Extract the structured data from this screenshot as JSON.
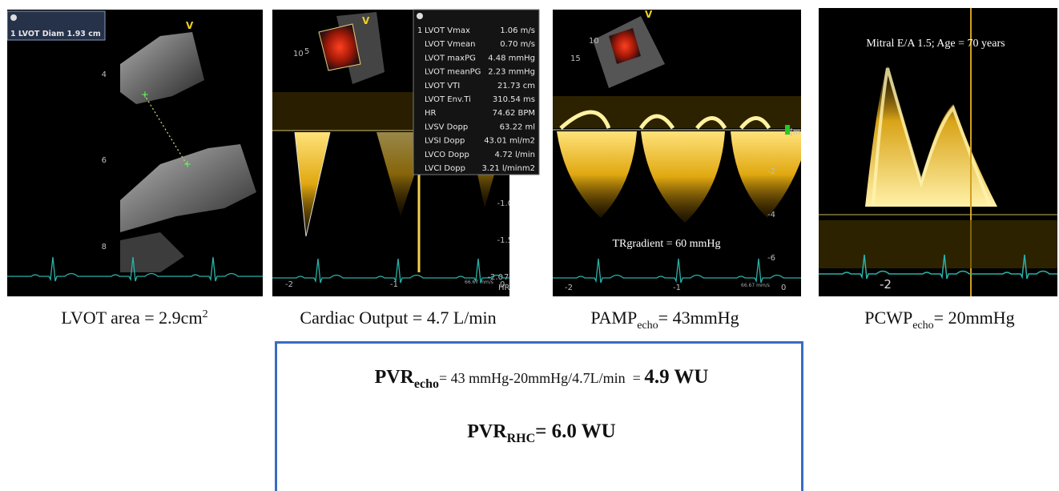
{
  "panels": [
    {
      "label": "1 LVOT Diam 1.93 cm",
      "marker": "V",
      "depth_marks": [
        "4",
        "6",
        "8"
      ],
      "caption": [
        "LVOT area = 2.9cm",
        "2"
      ]
    },
    {
      "marker": "V",
      "depth_marks": [
        "5",
        "10"
      ],
      "measurements": [
        [
          "1",
          "LVOT Vmax",
          "1.06 m/s"
        ],
        [
          "",
          "LVOT Vmean",
          "0.70 m/s"
        ],
        [
          "",
          "LVOT maxPG",
          "4.48 mmHg"
        ],
        [
          "",
          "LVOT meanPG",
          "2.23 mmHg"
        ],
        [
          "",
          "LVOT VTI",
          "21.73 cm"
        ],
        [
          "",
          "LVOT Env.Ti",
          "310.54 ms"
        ],
        [
          "",
          "HR",
          "74.62 BPM"
        ],
        [
          "",
          "LVSV Dopp",
          "63.22 ml"
        ],
        [
          "",
          "LVSI Dopp",
          "43.01 ml/m2"
        ],
        [
          "",
          "LVCO Dopp",
          "4.72 l/min"
        ],
        [
          "",
          "LVCI Dopp",
          "3.21 l/minm2"
        ]
      ],
      "scale_labels": [
        "-1.0",
        "-1.5",
        "-2.0"
      ],
      "hr": [
        "75",
        "HR"
      ],
      "time_labels": [
        "-2",
        "-1",
        "0"
      ],
      "sweep": "66.67 mm/s",
      "caption": [
        "Cardiac Output = 4.7 L/min"
      ]
    },
    {
      "marker": "V",
      "depth_marks": [
        "10",
        "15"
      ],
      "unit_mark": "[m",
      "scale_labels": [
        "-2",
        "-4",
        "-6"
      ],
      "annotation": "TRgradient = 60 mmHg",
      "time_labels": [
        "-2",
        "-1",
        "0"
      ],
      "sweep": "66.67 mm/s",
      "caption": [
        "PAMP",
        "echo",
        "= 43mmHg"
      ]
    },
    {
      "annotation": "Mitral E/A 1.5; Age = 70 years",
      "time_labels": [
        "-2"
      ],
      "caption": [
        "PCWP",
        "echo",
        "= 20mmHg"
      ]
    }
  ],
  "summary_box": {
    "lines": [
      [
        "PVR",
        "echo",
        "= 43 mmHg-20mmHg/4.7L/min  = ",
        "4.9 WU"
      ],
      [
        "PVR",
        "RHC",
        "= 6.0 WU"
      ]
    ]
  }
}
